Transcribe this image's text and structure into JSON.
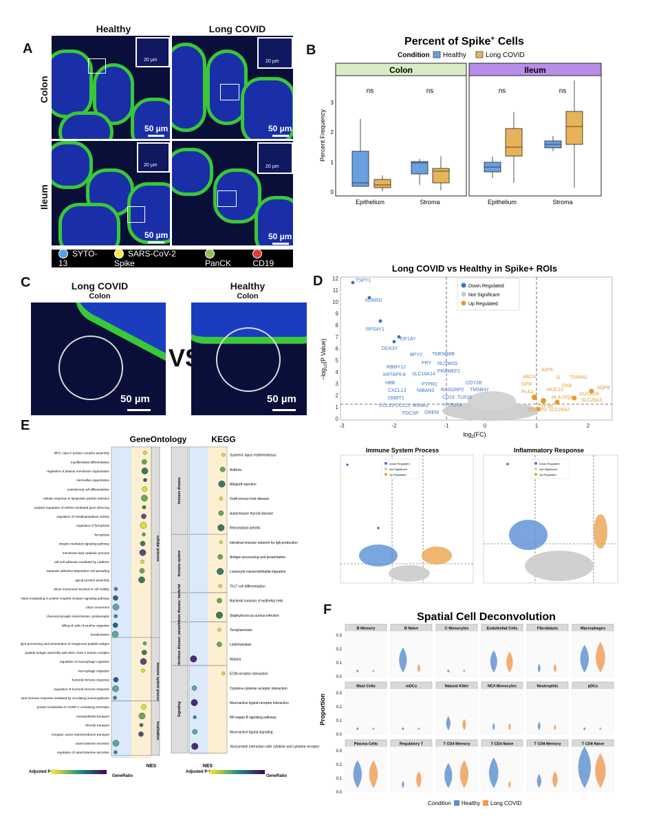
{
  "panels": {
    "A": "A",
    "B": "B",
    "C": "C",
    "D": "D",
    "E": "E",
    "F": "F"
  },
  "panelA": {
    "col_healthy": "Healthy",
    "col_longcovid": "Long COVID",
    "row_colon": "Colon",
    "row_ileum": "Ileum",
    "scale_large": "50 µm",
    "scale_small": "20 µm",
    "legend": [
      {
        "label": "SYTO-13",
        "color": "#4fa3e8"
      },
      {
        "label": "SARS-CoV-2 Spike",
        "color": "#f7e948"
      },
      {
        "label": "PanCK",
        "color": "#8bc34a"
      },
      {
        "label": "CD19",
        "color": "#e53935"
      }
    ]
  },
  "panelB": {
    "title": "Percent of Spike",
    "title_sup": "+",
    "title_end": " Cells",
    "legend_title": "Condition",
    "legend_items": [
      {
        "label": "Healthy",
        "color": "#6aa0e0"
      },
      {
        "label": "Long COVID",
        "color": "#e8b25a"
      }
    ],
    "ylabel": "Percent Frequency",
    "facets": [
      {
        "label": "Colon",
        "color": "#d9ecc6"
      },
      {
        "label": "Ileum",
        "color": "#b78de8"
      }
    ],
    "xcats": [
      "Epithelium",
      "Stroma"
    ],
    "sig": "ns",
    "yticks": [
      "0",
      "1",
      "2",
      "3"
    ]
  },
  "panelC": {
    "left_title": "Long COVID",
    "left_sub": "Colon",
    "right_title": "Healthy",
    "right_sub": "Colon",
    "vs": "VS",
    "scale": "50 µm"
  },
  "panelD": {
    "title": "Long COVID vs Healthy in Spike+ ROIs",
    "legend": [
      {
        "label": "Down Regulated",
        "color": "#3a75c4"
      },
      {
        "label": "Not Significant",
        "color": "#c8c8c8"
      },
      {
        "label": "Up Regulated",
        "color": "#e89a2a"
      }
    ],
    "yticks": [
      "0",
      "1",
      "2",
      "3",
      "4",
      "5",
      "6",
      "7",
      "8",
      "9",
      "10",
      "11",
      "12"
    ],
    "xticks": [
      "-3",
      "-2",
      "-1",
      "0",
      "1",
      "2"
    ],
    "down_genes": [
      "TSPY1",
      "KDM5D",
      "RPS4Y1",
      "EIF1AY",
      "DDX3Y",
      "BPY2",
      "TMEM88B",
      "RBMY1J",
      "PRY",
      "NUTM2G",
      "KRTAP5-8",
      "SLC16A14",
      "PRAMEF1",
      "HBB",
      "PTPRC",
      "CDY2B",
      "CXCL13",
      "NIBAN3",
      "RASGRP2",
      "TMSB4Y",
      "DMBT1",
      "CD19",
      "TLR10",
      "CCL19",
      "CCL21",
      "MS4A1",
      "USP27X",
      "FDCSP",
      "GREM"
    ],
    "up_genes": [
      "AATK",
      "ABCA",
      "TSPAN1",
      "SI",
      "GPR",
      "AQP8",
      "CKB",
      "MUC13",
      "PLA2",
      "GUCA2A",
      "HLA-DQA",
      "SLC26A3",
      "SDCBP2",
      "SLC26A2",
      "CYP3A"
    ],
    "sub_left_title": "Immune System Process",
    "sub_right_title": "Inflammatory Response"
  },
  "panelE": {
    "go_title": "GeneOntology",
    "kegg_title": "KEGG",
    "nes_label": "NES",
    "adj_label": "Adjusted P-Value",
    "generatio_label": "GeneRatio",
    "go_groups": [
      {
        "label": "cellular process",
        "count": 21
      },
      {
        "label": "immune system process",
        "count": 7
      },
      {
        "label": "localization",
        "count": 6
      }
    ],
    "go_terms": [
      "MHC class II protein complex assembly",
      "myofibroblast differentiation",
      "regulation of plasma membrane organization",
      "microvillus organization",
      "endodermal cell differentiation",
      "cellular response to lipoprotein particle stimulus",
      "positive regulation of miRNA-mediated gene silencing",
      "regulation of metallopeptidase activity",
      "regulation of ferroptosis",
      "ferroptosis",
      "integrin-mediated signaling pathway",
      "membrane lipid catabolic process",
      "cell-cell adhesion mediated by cadherin",
      "substrate adhesion-dependent cell spreading",
      "apical junction assembly",
      "cilium movement involved in cell motility",
      "adenylate cyclase-modulating G protein-coupled receptor signaling pathway",
      "cilium movement",
      "chemical synaptic transmission, postsynaptic",
      "killing of cells of another organism",
      "keratinization",
      "antigen processing and presentation of exogenous peptide antigen",
      "peptide antigen assembly with MHC class II protein complex",
      "regulation of macrophage migration",
      "macrophage migration",
      "humoral immune response",
      "regulation of humoral immune response",
      "regulation of humoral immune response mediated by circulating immunoglobulin",
      "protein localization to CENP-A containing chromatin",
      "transepithelial transport",
      "chloride transport",
      "inorganic anion transmembrane transport",
      "catecholamine secretion",
      "regulation of catecholamine secretion"
    ],
    "kegg_groups": [
      {
        "label": "Immune disease",
        "count": 6
      },
      {
        "label": "Immune system",
        "count": 4
      },
      {
        "label": "Infectious disease: bacterial",
        "count": 2
      },
      {
        "label": "Infectious disease: parasitic",
        "count": 3
      },
      {
        "label": "Signaling",
        "count": 6
      }
    ],
    "kegg_terms": [
      "Systemic lupus erythematosus",
      "Asthma",
      "Allograft rejection",
      "Graft-versus-host disease",
      "Autoimmune thyroid disease",
      "Rheumatoid arthritis",
      "Intestinal immune network for IgA production",
      "Antigen processing and presentation",
      "Leukocyte transendothelial migration",
      "Th17 cell differentiation",
      "Bacterial invasion of epithelial cells",
      "Staphylococcus aureus infection",
      "Toxoplasmosis",
      "Leishmaniasis",
      "Malaria",
      "ECM-receptor interaction",
      "Cytokine-cytokine receptor interaction",
      "Neuroactive ligand-receptor interaction",
      "NF-kappa B signaling pathway",
      "Neuroactive ligand signaling",
      "Viral protein interaction with cytokine and cytokine receptor"
    ]
  },
  "panelF": {
    "title": "Spatial Cell Deconvolution",
    "ylabel": "Proportion",
    "legend_title": "Condition",
    "legend_items": [
      {
        "label": "Healthy",
        "color": "#5b8fd0"
      },
      {
        "label": "Long COVID",
        "color": "#ef9a52"
      }
    ],
    "row1": [
      "B Memory",
      "B Naive",
      "C Monocytes",
      "Endothelial Cells",
      "Fibroblasts",
      "Macrophages"
    ],
    "row2": [
      "Mast Cells",
      "mDCs",
      "Natural Killer",
      "NC/I Monocytes",
      "Neutrophils",
      "pDCs"
    ],
    "row3": [
      "Plasma Cells",
      "Regulatory T",
      "T CD4 Memory",
      "T CD4 Naive",
      "T CD8 Memory",
      "T CD8 Naive"
    ],
    "yticks": [
      "0.0",
      "0.1",
      "0.2",
      "0.3"
    ]
  }
}
